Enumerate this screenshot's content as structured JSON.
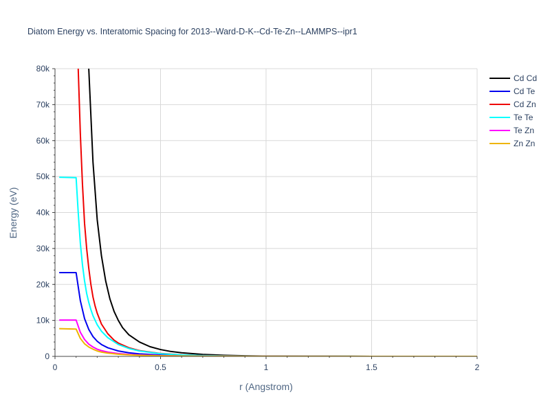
{
  "chart_data": {
    "type": "line",
    "title": "Diatom Energy vs. Interatomic Spacing for 2013--Ward-D-K--Cd-Te-Zn--LAMMPS--ipr1",
    "xlabel": "r (Angstrom)",
    "ylabel": "Energy (eV)",
    "xlim": [
      0,
      2
    ],
    "ylim": [
      0,
      80000
    ],
    "x_ticks": [
      0,
      0.5,
      1,
      1.5,
      2
    ],
    "x_tick_labels": [
      "0",
      "0.5",
      "1",
      "1.5",
      "2"
    ],
    "y_ticks": [
      0,
      10000,
      20000,
      30000,
      40000,
      50000,
      60000,
      70000,
      80000
    ],
    "y_tick_labels": [
      "0",
      "10k",
      "20k",
      "30k",
      "40k",
      "50k",
      "60k",
      "70k",
      "80k"
    ],
    "grid": true,
    "legend_position": "top-right",
    "series": [
      {
        "name": "Cd Cd",
        "color": "#000000",
        "x": [
          0.16,
          0.18,
          0.2,
          0.22,
          0.24,
          0.26,
          0.28,
          0.3,
          0.32,
          0.35,
          0.4,
          0.45,
          0.5,
          0.55,
          0.6,
          0.7,
          0.8,
          0.9,
          1.0,
          1.2,
          1.5,
          2.0
        ],
        "y": [
          80000,
          54000,
          38000,
          28000,
          21000,
          16000,
          12500,
          10000,
          8000,
          6000,
          4000,
          2700,
          1900,
          1350,
          1000,
          550,
          300,
          170,
          90,
          30,
          5,
          0
        ]
      },
      {
        "name": "Cd Te",
        "color": "#0000ee",
        "x": [
          0.02,
          0.1,
          0.12,
          0.14,
          0.16,
          0.18,
          0.2,
          0.22,
          0.25,
          0.3,
          0.35,
          0.4,
          0.5,
          0.6,
          0.7,
          0.8,
          1.0,
          1.5,
          2.0
        ],
        "y": [
          23300,
          23300,
          15500,
          10500,
          7500,
          5500,
          4200,
          3300,
          2400,
          1500,
          1000,
          700,
          380,
          220,
          130,
          80,
          30,
          5,
          0
        ]
      },
      {
        "name": "Cd Zn",
        "color": "#ee0000",
        "x": [
          0.11,
          0.12,
          0.13,
          0.14,
          0.15,
          0.16,
          0.17,
          0.18,
          0.19,
          0.2,
          0.22,
          0.25,
          0.28,
          0.3,
          0.35,
          0.4,
          0.5,
          0.6,
          0.7,
          0.8,
          1.0,
          1.5,
          2.0
        ],
        "y": [
          80000,
          62000,
          48000,
          37000,
          30000,
          24500,
          20000,
          16500,
          14000,
          12000,
          9000,
          6300,
          4500,
          3700,
          2400,
          1600,
          800,
          430,
          250,
          150,
          50,
          5,
          0
        ]
      },
      {
        "name": "Te Te",
        "color": "#00ffff",
        "x": [
          0.02,
          0.1,
          0.11,
          0.12,
          0.13,
          0.14,
          0.15,
          0.16,
          0.17,
          0.18,
          0.2,
          0.22,
          0.25,
          0.3,
          0.35,
          0.4,
          0.5,
          0.6,
          0.7,
          0.8,
          1.0,
          1.5,
          2.0
        ],
        "y": [
          49800,
          49700,
          40000,
          31500,
          25500,
          21000,
          17500,
          15000,
          13000,
          11300,
          8800,
          7000,
          5200,
          3300,
          2200,
          1500,
          750,
          400,
          230,
          140,
          50,
          5,
          0
        ]
      },
      {
        "name": "Te Zn",
        "color": "#ff00ff",
        "x": [
          0.02,
          0.1,
          0.12,
          0.14,
          0.16,
          0.18,
          0.2,
          0.22,
          0.25,
          0.3,
          0.35,
          0.4,
          0.5,
          0.6,
          0.7,
          0.8,
          1.0,
          1.5,
          2.0
        ],
        "y": [
          10100,
          10100,
          6700,
          4700,
          3400,
          2600,
          2000,
          1600,
          1200,
          800,
          550,
          400,
          220,
          130,
          80,
          50,
          20,
          3,
          0
        ]
      },
      {
        "name": "Zn Zn",
        "color": "#eeb400",
        "x": [
          0.02,
          0.1,
          0.12,
          0.14,
          0.16,
          0.18,
          0.2,
          0.22,
          0.25,
          0.3,
          0.35,
          0.4,
          0.5,
          0.6,
          0.7,
          0.8,
          1.0,
          1.5,
          2.0
        ],
        "y": [
          7700,
          7600,
          5000,
          3500,
          2600,
          2000,
          1500,
          1200,
          900,
          600,
          420,
          300,
          170,
          100,
          60,
          40,
          15,
          2,
          0
        ]
      }
    ]
  }
}
